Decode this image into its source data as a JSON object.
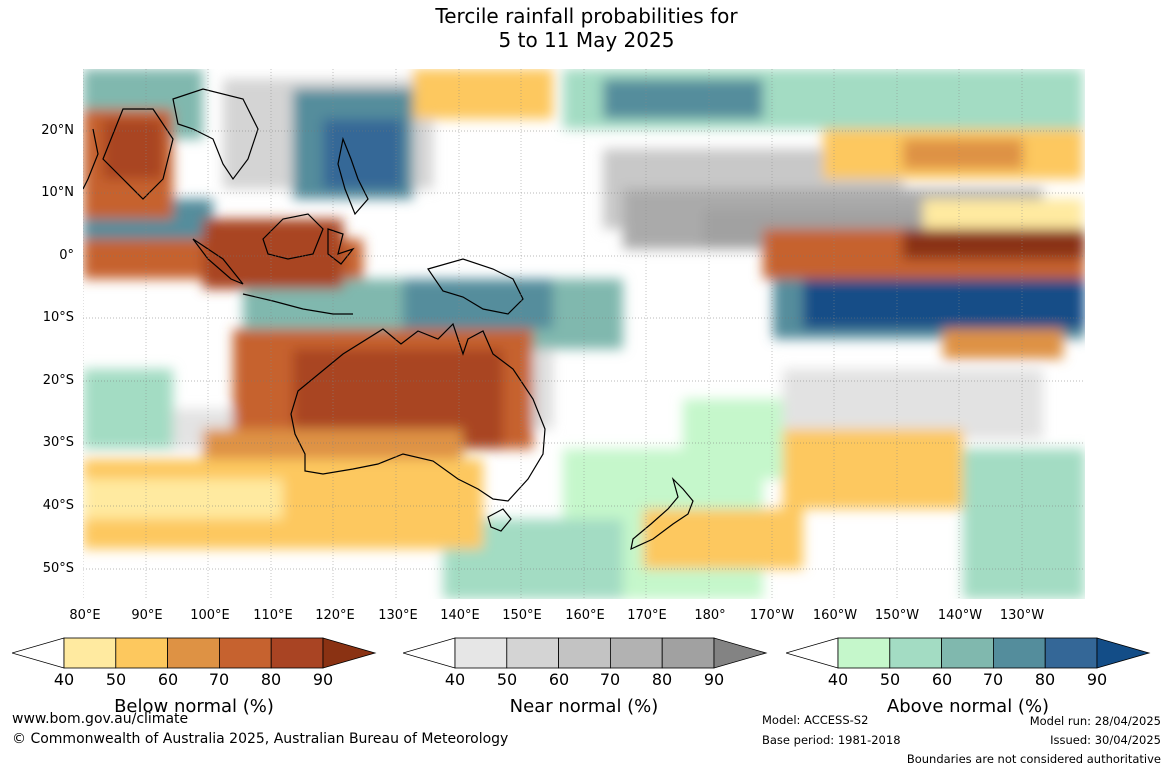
{
  "title": {
    "line1": "Tercile rainfall probabilities for",
    "line2": "5 to 11 May 2025"
  },
  "map": {
    "lat_labels": [
      "20°N",
      "10°N",
      "0°",
      "10°S",
      "20°S",
      "30°S",
      "40°S",
      "50°S"
    ],
    "lon_labels": [
      "80°E",
      "90°E",
      "100°E",
      "110°E",
      "120°E",
      "130°E",
      "140°E",
      "150°E",
      "160°E",
      "170°E",
      "180°",
      "170°W",
      "160°W",
      "150°W",
      "140°W",
      "130°W"
    ]
  },
  "colorbars": [
    {
      "name": "below",
      "title": "Below normal (%)",
      "ticks": [
        "40",
        "50",
        "60",
        "70",
        "80",
        "90"
      ],
      "colors": [
        "#ffffff",
        "#ffeaa0",
        "#fdc85e",
        "#de9244",
        "#c6622f",
        "#a94423",
        "#8a3213"
      ]
    },
    {
      "name": "near",
      "title": "Near normal (%)",
      "ticks": [
        "40",
        "50",
        "60",
        "70",
        "80",
        "90"
      ],
      "colors": [
        "#ffffff",
        "#e6e6e6",
        "#d4d4d4",
        "#c3c3c3",
        "#b2b2b2",
        "#a1a1a1",
        "#838383"
      ]
    },
    {
      "name": "above",
      "title": "Above normal (%)",
      "ticks": [
        "40",
        "50",
        "60",
        "70",
        "80",
        "90"
      ],
      "colors": [
        "#ffffff",
        "#c5f7cb",
        "#a3dcc3",
        "#80b8ae",
        "#548d9c",
        "#346797",
        "#134d87"
      ]
    }
  ],
  "footer": {
    "website": "www.bom.gov.au/climate",
    "copyright": "© Commonwealth of Australia 2025, Australian Bureau of Meteorology",
    "model": "Model: ACCESS-S2",
    "base_period": "Base period: 1981-2018",
    "model_run": "Model run: 28/04/2025",
    "issued": "Issued: 30/04/2025",
    "boundaries": "Boundaries are not considered authoritative"
  }
}
